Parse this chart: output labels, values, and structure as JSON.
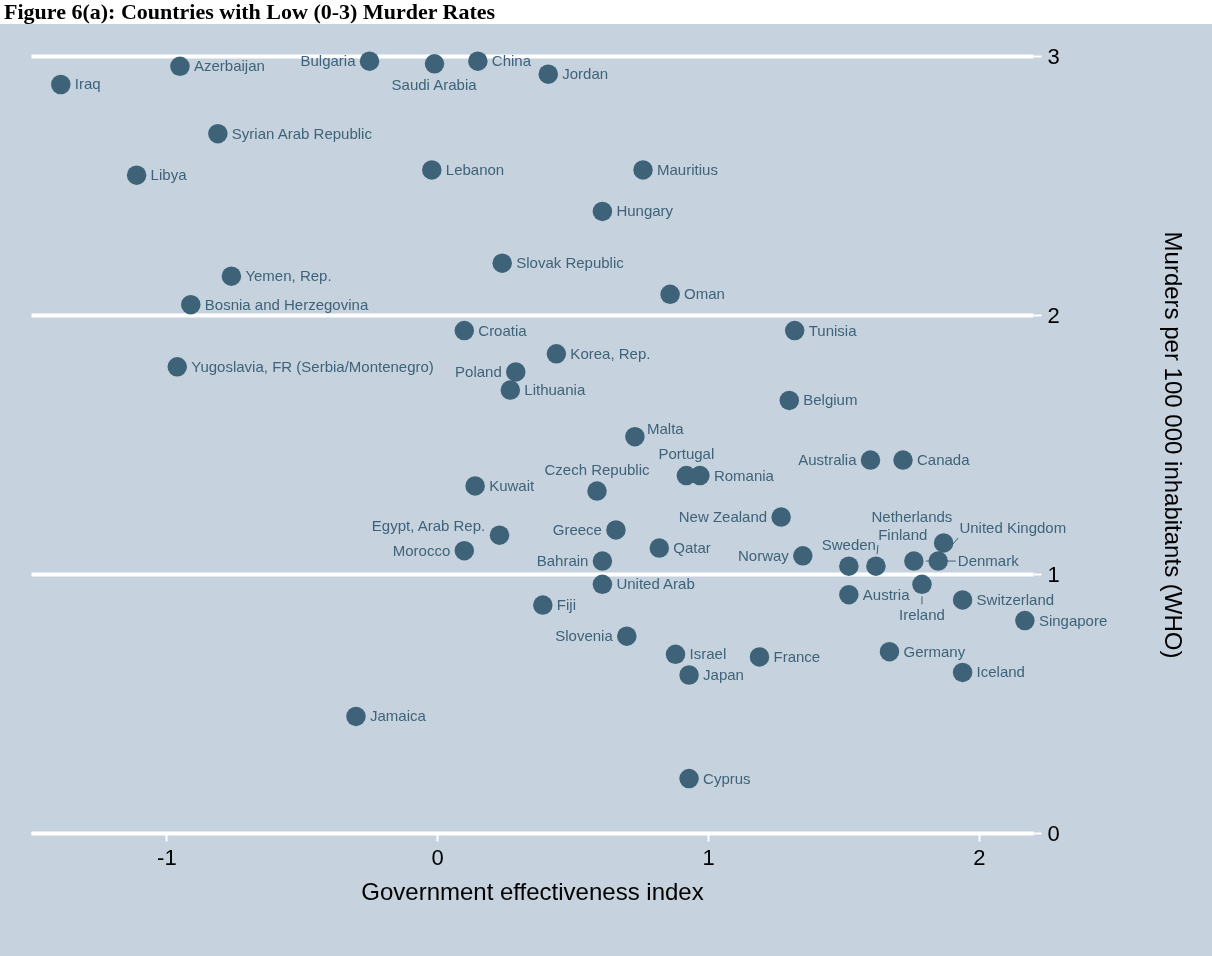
{
  "chart_data": {
    "type": "scatter",
    "title": "Figure 6(a): Countries with Low (0-3) Murder Rates",
    "xlabel": "Government effectiveness index",
    "ylabel": "Murders per 100 000 inhabitants (WHO)",
    "xlim": [
      -1.5,
      2.2
    ],
    "ylim": [
      0,
      3
    ],
    "xticks": [
      -1,
      0,
      1,
      2
    ],
    "yticks": [
      0,
      1,
      2,
      3
    ],
    "grid": "y",
    "marker": "circle",
    "series": [
      {
        "color": "#3e6379",
        "x": [
          -1.39,
          -0.95,
          -0.25,
          -0.01,
          0.15,
          0.41,
          -0.81,
          -1.11,
          -0.02,
          0.76,
          0.61,
          0.24,
          -0.76,
          -0.91,
          0.86,
          0.1,
          1.32,
          -0.96,
          0.44,
          0.29,
          0.27,
          1.3,
          0.73,
          1.6,
          1.72,
          0.92,
          0.97,
          0.14,
          0.59,
          1.27,
          0.23,
          0.66,
          0.1,
          0.82,
          0.61,
          1.35,
          0.61,
          0.39,
          1.52,
          1.62,
          1.76,
          1.85,
          1.87,
          1.79,
          1.52,
          1.94,
          2.17,
          0.7,
          0.88,
          1.19,
          1.67,
          0.93,
          1.94,
          -0.3,
          0.93
        ],
        "values": [
          2.89,
          2.96,
          2.98,
          2.97,
          2.98,
          2.93,
          2.7,
          2.54,
          2.56,
          2.56,
          2.4,
          2.2,
          2.15,
          2.04,
          2.08,
          1.94,
          1.94,
          1.8,
          1.85,
          1.78,
          1.71,
          1.67,
          1.53,
          1.44,
          1.44,
          1.38,
          1.38,
          1.34,
          1.32,
          1.22,
          1.15,
          1.17,
          1.09,
          1.1,
          1.05,
          1.07,
          0.96,
          0.88,
          1.03,
          1.03,
          1.05,
          1.05,
          1.12,
          0.96,
          0.92,
          0.9,
          0.82,
          0.76,
          0.69,
          0.68,
          0.7,
          0.61,
          0.62,
          0.45,
          0.21
        ]
      }
    ],
    "annotations": [
      {
        "text": "Iraq",
        "x": -1.39,
        "y": 2.89
      },
      {
        "text": "Azerbaijan",
        "x": -0.95,
        "y": 2.96
      },
      {
        "text": "Bulgaria",
        "x": -0.25,
        "y": 2.98
      },
      {
        "text": "Saudi Arabia",
        "x": -0.01,
        "y": 2.97
      },
      {
        "text": "China",
        "x": 0.15,
        "y": 2.98
      },
      {
        "text": "Jordan",
        "x": 0.41,
        "y": 2.93
      },
      {
        "text": "Syrian Arab Republic",
        "x": -0.81,
        "y": 2.7
      },
      {
        "text": "Libya",
        "x": -1.11,
        "y": 2.54
      },
      {
        "text": "Lebanon",
        "x": -0.02,
        "y": 2.56
      },
      {
        "text": "Mauritius",
        "x": 0.76,
        "y": 2.56
      },
      {
        "text": "Hungary",
        "x": 0.61,
        "y": 2.4
      },
      {
        "text": "Slovak Republic",
        "x": 0.24,
        "y": 2.2
      },
      {
        "text": "Yemen, Rep.",
        "x": -0.76,
        "y": 2.15
      },
      {
        "text": "Bosnia and Herzegovina",
        "x": -0.91,
        "y": 2.04
      },
      {
        "text": "Oman",
        "x": 0.86,
        "y": 2.08
      },
      {
        "text": "Croatia",
        "x": 0.1,
        "y": 1.94
      },
      {
        "text": "Tunisia",
        "x": 1.32,
        "y": 1.94
      },
      {
        "text": "Yugoslavia, FR (Serbia/Montenegro)",
        "x": -0.96,
        "y": 1.8
      },
      {
        "text": "Korea, Rep.",
        "x": 0.44,
        "y": 1.85
      },
      {
        "text": "Poland",
        "x": 0.29,
        "y": 1.78
      },
      {
        "text": "Lithuania",
        "x": 0.27,
        "y": 1.71
      },
      {
        "text": "Belgium",
        "x": 1.3,
        "y": 1.67
      },
      {
        "text": "Malta",
        "x": 0.73,
        "y": 1.53
      },
      {
        "text": "Australia",
        "x": 1.6,
        "y": 1.44
      },
      {
        "text": "Canada",
        "x": 1.72,
        "y": 1.44
      },
      {
        "text": "Portugal",
        "x": 0.92,
        "y": 1.38
      },
      {
        "text": "Romania",
        "x": 0.97,
        "y": 1.38
      },
      {
        "text": "Kuwait",
        "x": 0.14,
        "y": 1.34
      },
      {
        "text": "Czech Republic",
        "x": 0.59,
        "y": 1.32
      },
      {
        "text": "New Zealand",
        "x": 1.27,
        "y": 1.22
      },
      {
        "text": "Egypt, Arab Rep.",
        "x": 0.23,
        "y": 1.15
      },
      {
        "text": "Greece",
        "x": 0.66,
        "y": 1.17
      },
      {
        "text": "Morocco",
        "x": 0.1,
        "y": 1.09
      },
      {
        "text": "Qatar",
        "x": 0.82,
        "y": 1.1
      },
      {
        "text": "Bahrain",
        "x": 0.61,
        "y": 1.05
      },
      {
        "text": "Norway",
        "x": 1.35,
        "y": 1.07
      },
      {
        "text": "United Arab",
        "x": 0.61,
        "y": 0.96
      },
      {
        "text": "Fiji",
        "x": 0.39,
        "y": 0.88
      },
      {
        "text": "Sweden",
        "x": 1.52,
        "y": 1.03
      },
      {
        "text": "Finland",
        "x": 1.62,
        "y": 1.03
      },
      {
        "text": "Denmark",
        "x": 1.76,
        "y": 1.05
      },
      {
        "text": "United Kingdom",
        "x": 1.85,
        "y": 1.05
      },
      {
        "text": "Netherlands",
        "x": 1.87,
        "y": 1.12
      },
      {
        "text": "Ireland",
        "x": 1.79,
        "y": 0.96
      },
      {
        "text": "Austria",
        "x": 1.52,
        "y": 0.92
      },
      {
        "text": "Switzerland",
        "x": 1.94,
        "y": 0.9
      },
      {
        "text": "Singapore",
        "x": 2.17,
        "y": 0.82
      },
      {
        "text": "Slovenia",
        "x": 0.7,
        "y": 0.76
      },
      {
        "text": "Israel",
        "x": 0.88,
        "y": 0.69
      },
      {
        "text": "France",
        "x": 1.19,
        "y": 0.68
      },
      {
        "text": "Germany",
        "x": 1.67,
        "y": 0.7
      },
      {
        "text": "Japan",
        "x": 0.93,
        "y": 0.61
      },
      {
        "text": "Iceland",
        "x": 1.94,
        "y": 0.62
      },
      {
        "text": "Jamaica",
        "x": -0.3,
        "y": 0.45
      },
      {
        "text": "Cyprus",
        "x": 0.93,
        "y": 0.21
      }
    ]
  }
}
